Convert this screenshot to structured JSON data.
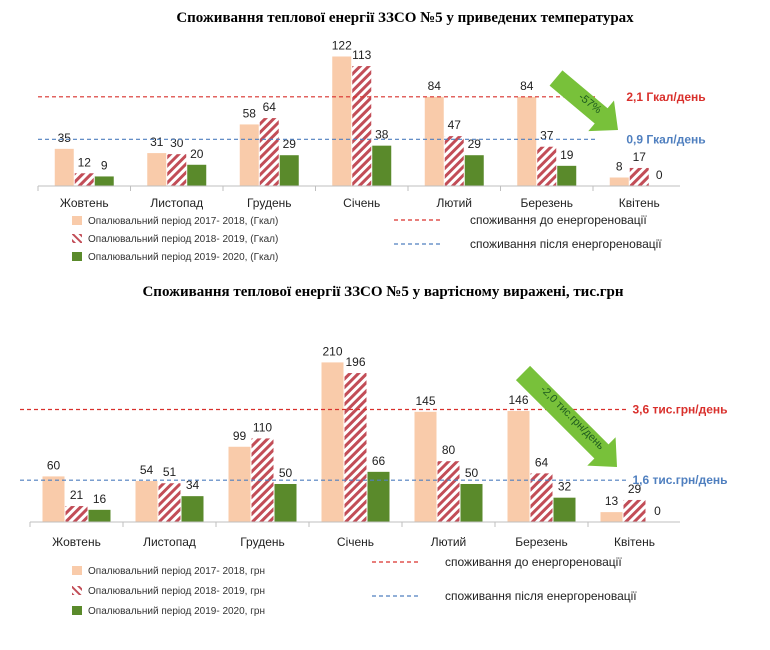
{
  "colors": {
    "s1": "#f9cbaa",
    "s2_stripe": "#c24d57",
    "s3": "#5a8a2b",
    "ref_before": "#d9302c",
    "ref_after": "#4f7fbf",
    "arrow": "#78c13a"
  },
  "chart_data": [
    {
      "type": "bar",
      "title": "Споживання теплової енергії ЗЗСО №5 у приведених температурах",
      "categories": [
        "Жовтень",
        "Листопад",
        "Грудень",
        "Січень",
        "Лютий",
        "Березень",
        "Квітень"
      ],
      "series": [
        {
          "name": "Опалювальний період 2017- 2018, (Гкал)",
          "values": [
            35,
            31,
            58,
            122,
            84,
            84,
            8
          ]
        },
        {
          "name": "Опалювальний період 2018- 2019, (Гкал)",
          "values": [
            12,
            30,
            64,
            113,
            47,
            37,
            17
          ]
        },
        {
          "name": "Опалювальний період 2019- 2020,  (Гкал)",
          "values": [
            9,
            20,
            29,
            38,
            29,
            19,
            0
          ]
        }
      ],
      "ylim": [
        0,
        130
      ],
      "ref_lines": [
        {
          "label": "2,1 Гкал/день",
          "value": 84,
          "color": "red"
        },
        {
          "label": "0,9 Гкал/день",
          "value": 44,
          "color": "blue"
        }
      ],
      "ref_legend": [
        "споживання до енергореновації",
        "споживання після енергореновації"
      ],
      "arrow_label": "-57%"
    },
    {
      "type": "bar",
      "title": "Споживання теплової енергії ЗЗСО №5 у вартісному виражені, тис.грн",
      "categories": [
        "Жовтень",
        "Листопад",
        "Грудень",
        "Січень",
        "Лютий",
        "Березень",
        "Квітень"
      ],
      "series": [
        {
          "name": "Опалювальний період 2017- 2018, грн",
          "values": [
            60,
            54,
            99,
            210,
            145,
            146,
            13
          ]
        },
        {
          "name": "Опалювальний період 2018- 2019, грн",
          "values": [
            21,
            51,
            110,
            196,
            80,
            64,
            29
          ]
        },
        {
          "name": "Опалювальний період 2019- 2020, грн",
          "values": [
            16,
            34,
            50,
            66,
            50,
            32,
            0
          ]
        }
      ],
      "ylim": [
        0,
        225
      ],
      "ref_lines": [
        {
          "label": "3,6 тис.грн/день",
          "value": 148,
          "color": "red"
        },
        {
          "label": "1,6 тис.грн/день",
          "value": 55,
          "color": "blue"
        }
      ],
      "ref_legend": [
        "споживання до енергореновації",
        "споживання після енергореновації"
      ],
      "arrow_label": "-2,0 тис.грн/день"
    }
  ]
}
